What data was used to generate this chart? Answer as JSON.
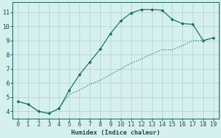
{
  "xlabel": "Humidex (Indice chaleur)",
  "xlim_min": -0.5,
  "xlim_max": 19.5,
  "ylim_min": 3.5,
  "ylim_max": 11.7,
  "yticks": [
    4,
    5,
    6,
    7,
    8,
    9,
    10,
    11
  ],
  "xticks": [
    0,
    1,
    2,
    3,
    4,
    5,
    6,
    7,
    8,
    9,
    10,
    11,
    12,
    13,
    14,
    15,
    16,
    17,
    18,
    19
  ],
  "line_color": "#1a6b6b",
  "bg_color": "#d6f0ee",
  "grid_color": "#b8d8d4",
  "upper_x": [
    0,
    1,
    2,
    3,
    4,
    5,
    6,
    7,
    8,
    9,
    10,
    11,
    12,
    13,
    14,
    15,
    16,
    17,
    18,
    19
  ],
  "upper_y": [
    4.7,
    4.5,
    4.0,
    3.85,
    4.2,
    5.5,
    6.6,
    7.5,
    8.4,
    9.5,
    10.4,
    10.95,
    11.2,
    11.2,
    11.15,
    10.5,
    10.2,
    10.15,
    9.0,
    9.2
  ],
  "lower_x": [
    0,
    1,
    2,
    3,
    4,
    5,
    6,
    7,
    8,
    9,
    10,
    11,
    12,
    13,
    14,
    15,
    16,
    17,
    18,
    19
  ],
  "lower_y": [
    4.7,
    4.5,
    4.0,
    3.85,
    4.2,
    5.2,
    5.5,
    5.9,
    6.2,
    6.6,
    7.0,
    7.4,
    7.7,
    8.05,
    8.35,
    8.35,
    8.65,
    9.0,
    9.0,
    9.2
  ]
}
